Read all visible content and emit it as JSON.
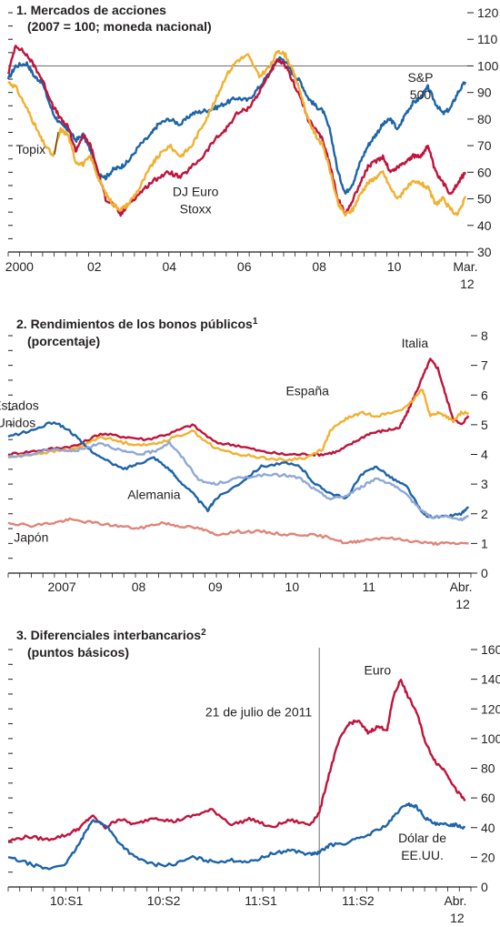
{
  "chart_data": [
    {
      "type": "line",
      "title": "1. Mercados de acciones",
      "subtitle": "(2007 = 100; moneda nacional)",
      "ylim": [
        30,
        120
      ],
      "yticks": [
        30,
        40,
        50,
        60,
        70,
        80,
        90,
        100,
        110,
        120
      ],
      "xlim": [
        2000.0,
        2012.25
      ],
      "xticks": [
        {
          "label": "2000",
          "x": 2000.3
        },
        {
          "label": "02",
          "x": 2002.3
        },
        {
          "label": "04",
          "x": 2004.3
        },
        {
          "label": "06",
          "x": 2006.3
        },
        {
          "label": "08",
          "x": 2008.3
        },
        {
          "label": "10",
          "x": 2010.3
        },
        {
          "label": "Mar.",
          "label2": "12",
          "x": 2012.2
        }
      ],
      "reference_line": 100,
      "series": [
        {
          "name": "S&P 500",
          "label_lines": [
            "S&P",
            "500"
          ],
          "label_at": [
            2011.0,
            94
          ],
          "color": "#1e64a8",
          "x": [
            2000.0,
            2000.2,
            2000.5,
            2000.7,
            2000.9,
            2001.2,
            2001.4,
            2001.6,
            2001.8,
            2002.0,
            2002.2,
            2002.4,
            2002.6,
            2002.8,
            2003.0,
            2003.2,
            2003.5,
            2003.8,
            2004.0,
            2004.3,
            2004.6,
            2004.9,
            2005.2,
            2005.5,
            2005.8,
            2006.1,
            2006.4,
            2006.7,
            2007.0,
            2007.2,
            2007.4,
            2007.6,
            2007.8,
            2008.0,
            2008.2,
            2008.4,
            2008.6,
            2008.8,
            2009.0,
            2009.2,
            2009.4,
            2009.6,
            2009.8,
            2010.0,
            2010.2,
            2010.4,
            2010.6,
            2010.8,
            2011.0,
            2011.2,
            2011.4,
            2011.6,
            2011.8,
            2012.0,
            2012.2
          ],
          "y": [
            95,
            100,
            101,
            96,
            94,
            82,
            78,
            76,
            72,
            74,
            68,
            60,
            58,
            61,
            62,
            64,
            70,
            74,
            78,
            80,
            78,
            82,
            83,
            84,
            86,
            88,
            87,
            92,
            98,
            103,
            102,
            97,
            94,
            88,
            85,
            83,
            75,
            60,
            52,
            56,
            64,
            70,
            74,
            78,
            80,
            76,
            82,
            86,
            88,
            92,
            86,
            82,
            84,
            90,
            94
          ]
        },
        {
          "name": "DJ Euro Stoxx",
          "label_lines": [
            "DJ Euro",
            "Stoxx"
          ],
          "label_at": [
            2005.0,
            51
          ],
          "color": "#c0143c",
          "x": [
            2000.0,
            2000.2,
            2000.5,
            2000.7,
            2000.9,
            2001.2,
            2001.4,
            2001.6,
            2001.8,
            2002.0,
            2002.2,
            2002.4,
            2002.6,
            2002.8,
            2003.0,
            2003.2,
            2003.5,
            2003.8,
            2004.0,
            2004.3,
            2004.6,
            2004.9,
            2005.2,
            2005.5,
            2005.8,
            2006.1,
            2006.4,
            2006.7,
            2007.0,
            2007.2,
            2007.4,
            2007.6,
            2007.8,
            2008.0,
            2008.2,
            2008.4,
            2008.6,
            2008.8,
            2009.0,
            2009.2,
            2009.4,
            2009.6,
            2009.8,
            2010.0,
            2010.2,
            2010.4,
            2010.6,
            2010.8,
            2011.0,
            2011.2,
            2011.4,
            2011.6,
            2011.8,
            2012.0,
            2012.2
          ],
          "y": [
            97,
            108,
            104,
            100,
            95,
            85,
            80,
            77,
            68,
            74,
            70,
            60,
            50,
            48,
            44,
            48,
            52,
            56,
            58,
            60,
            58,
            62,
            66,
            72,
            76,
            82,
            84,
            90,
            98,
            102,
            100,
            94,
            88,
            80,
            76,
            72,
            62,
            50,
            44,
            50,
            56,
            62,
            64,
            66,
            60,
            62,
            64,
            66,
            66,
            70,
            60,
            56,
            52,
            56,
            60
          ]
        },
        {
          "name": "Topix",
          "label_lines": [
            "Topix"
          ],
          "label_at": [
            2000.6,
            67
          ],
          "color": "#f2b030",
          "x": [
            2000.0,
            2000.2,
            2000.5,
            2000.7,
            2000.9,
            2001.2,
            2001.4,
            2001.6,
            2001.8,
            2002.0,
            2002.2,
            2002.4,
            2002.6,
            2002.8,
            2003.0,
            2003.2,
            2003.5,
            2003.8,
            2004.0,
            2004.3,
            2004.6,
            2004.9,
            2005.2,
            2005.5,
            2005.8,
            2006.1,
            2006.4,
            2006.7,
            2007.0,
            2007.2,
            2007.4,
            2007.6,
            2007.8,
            2008.0,
            2008.2,
            2008.4,
            2008.6,
            2008.8,
            2009.0,
            2009.2,
            2009.4,
            2009.6,
            2009.8,
            2010.0,
            2010.2,
            2010.4,
            2010.6,
            2010.8,
            2011.0,
            2011.2,
            2011.4,
            2011.6,
            2011.8,
            2012.0,
            2012.2
          ],
          "y": [
            94,
            92,
            84,
            78,
            72,
            66,
            76,
            74,
            64,
            63,
            66,
            58,
            52,
            48,
            46,
            48,
            54,
            62,
            66,
            70,
            66,
            70,
            78,
            86,
            96,
            102,
            104,
            96,
            100,
            106,
            104,
            98,
            90,
            80,
            74,
            70,
            60,
            48,
            44,
            46,
            52,
            56,
            58,
            60,
            54,
            50,
            54,
            56,
            56,
            54,
            48,
            50,
            46,
            44,
            51
          ]
        }
      ]
    },
    {
      "type": "line",
      "title": "2. Rendimientos de los bonos públicos",
      "title_sup": "1",
      "subtitle": "(porcentaje)",
      "ylim": [
        0,
        8
      ],
      "yticks": [
        0,
        1,
        2,
        3,
        4,
        5,
        6,
        7,
        8
      ],
      "xlim": [
        2006.3,
        2012.33
      ],
      "xticks": [
        {
          "label": "2007",
          "x": 2007.0
        },
        {
          "label": "08",
          "x": 2008.0
        },
        {
          "label": "09",
          "x": 2009.0
        },
        {
          "label": "10",
          "x": 2010.0
        },
        {
          "label": "11",
          "x": 2011.0
        },
        {
          "label": "Abr.",
          "label2": "12",
          "x": 2012.2
        }
      ],
      "series": [
        {
          "name": "Italia",
          "label_lines": [
            "Italia"
          ],
          "label_at": [
            2011.6,
            7.6
          ],
          "color": "#c0143c",
          "x": [
            2006.3,
            2006.6,
            2006.9,
            2007.2,
            2007.5,
            2007.8,
            2008.1,
            2008.4,
            2008.7,
            2009.0,
            2009.3,
            2009.6,
            2009.9,
            2010.2,
            2010.4,
            2010.6,
            2010.8,
            2011.0,
            2011.2,
            2011.4,
            2011.5,
            2011.6,
            2011.7,
            2011.8,
            2011.9,
            2012.0,
            2012.1,
            2012.2,
            2012.3
          ],
          "y": [
            4.0,
            4.1,
            4.2,
            4.3,
            4.7,
            4.6,
            4.5,
            4.7,
            5.0,
            4.4,
            4.3,
            4.1,
            4.0,
            4.0,
            4.0,
            4.1,
            4.4,
            4.7,
            4.8,
            4.9,
            5.4,
            6.0,
            6.6,
            7.2,
            6.9,
            6.0,
            5.2,
            5.0,
            5.3
          ]
        },
        {
          "name": "España",
          "label_lines": [
            "España"
          ],
          "label_at": [
            2010.2,
            6.0
          ],
          "color": "#f2b030",
          "x": [
            2006.3,
            2006.6,
            2006.9,
            2007.2,
            2007.5,
            2007.8,
            2008.1,
            2008.4,
            2008.7,
            2009.0,
            2009.3,
            2009.6,
            2009.9,
            2010.2,
            2010.4,
            2010.5,
            2010.7,
            2010.9,
            2011.1,
            2011.3,
            2011.5,
            2011.7,
            2011.8,
            2011.9,
            2012.0,
            2012.1,
            2012.2,
            2012.3
          ],
          "y": [
            3.9,
            4.0,
            4.1,
            4.2,
            4.6,
            4.4,
            4.3,
            4.5,
            4.8,
            4.2,
            4.0,
            3.9,
            3.8,
            3.9,
            4.2,
            4.8,
            5.2,
            5.4,
            5.3,
            5.4,
            5.6,
            6.2,
            5.3,
            5.4,
            5.3,
            5.1,
            5.4,
            5.4
          ]
        },
        {
          "name": "Estados Unidos",
          "label_lines": [
            "Estados",
            "Unidos"
          ],
          "label_at": [
            2006.4,
            5.5
          ],
          "color": "#1e64a8",
          "x": [
            2006.3,
            2006.6,
            2006.9,
            2007.1,
            2007.3,
            2007.5,
            2007.8,
            2008.0,
            2008.2,
            2008.4,
            2008.5,
            2008.7,
            2008.9,
            2009.0,
            2009.3,
            2009.6,
            2009.9,
            2010.1,
            2010.3,
            2010.5,
            2010.7,
            2010.9,
            2011.1,
            2011.3,
            2011.5,
            2011.7,
            2011.8,
            2012.0,
            2012.2,
            2012.3
          ],
          "y": [
            4.6,
            4.8,
            5.1,
            4.8,
            4.3,
            3.9,
            3.5,
            3.7,
            3.9,
            3.5,
            3.2,
            2.7,
            2.1,
            2.5,
            3.0,
            3.6,
            3.7,
            3.6,
            3.0,
            2.7,
            2.5,
            3.3,
            3.6,
            3.2,
            2.9,
            2.0,
            1.9,
            1.9,
            2.0,
            2.2
          ]
        },
        {
          "name": "Alemania",
          "label_lines": [
            "Alemania"
          ],
          "label_at": [
            2008.2,
            2.5
          ],
          "color": "#8fa8d6",
          "x": [
            2006.3,
            2006.6,
            2006.9,
            2007.1,
            2007.3,
            2007.5,
            2007.8,
            2008.0,
            2008.2,
            2008.4,
            2008.6,
            2008.8,
            2009.0,
            2009.3,
            2009.6,
            2009.9,
            2010.1,
            2010.3,
            2010.5,
            2010.7,
            2010.9,
            2011.1,
            2011.3,
            2011.5,
            2011.7,
            2011.8,
            2012.0,
            2012.2,
            2012.3
          ],
          "y": [
            3.9,
            4.0,
            4.2,
            4.1,
            4.2,
            4.4,
            4.1,
            4.0,
            4.1,
            4.4,
            3.8,
            3.1,
            3.0,
            3.2,
            3.3,
            3.3,
            3.2,
            2.8,
            2.5,
            2.6,
            2.9,
            3.2,
            3.0,
            2.6,
            2.1,
            1.9,
            1.9,
            1.8,
            1.9
          ]
        },
        {
          "name": "Japón",
          "label_lines": [
            "Japón"
          ],
          "label_at": [
            2006.6,
            1.05
          ],
          "color": "#e0857a",
          "x": [
            2006.3,
            2006.6,
            2006.9,
            2007.1,
            2007.4,
            2007.7,
            2008.0,
            2008.3,
            2008.5,
            2008.8,
            2009.0,
            2009.3,
            2009.6,
            2009.9,
            2010.2,
            2010.5,
            2010.7,
            2010.9,
            2011.2,
            2011.5,
            2011.8,
            2012.0,
            2012.3
          ],
          "y": [
            1.7,
            1.6,
            1.7,
            1.8,
            1.7,
            1.6,
            1.5,
            1.7,
            1.6,
            1.5,
            1.3,
            1.4,
            1.4,
            1.3,
            1.3,
            1.2,
            1.0,
            1.1,
            1.2,
            1.1,
            1.0,
            1.0,
            1.0
          ]
        }
      ]
    },
    {
      "type": "line",
      "title": "3. Diferenciales interbancarios",
      "title_sup": "2",
      "subtitle": "(puntos básicos)",
      "ylim": [
        0,
        160
      ],
      "yticks": [
        0,
        20,
        40,
        60,
        80,
        100,
        120,
        140,
        160
      ],
      "xlim": [
        2009.95,
        2012.33
      ],
      "xticks": [
        {
          "label": "10:S1",
          "x": 2010.25
        },
        {
          "label": "10:S2",
          "x": 2010.75
        },
        {
          "label": "11:S1",
          "x": 2011.25
        },
        {
          "label": "11:S2",
          "x": 2011.75
        },
        {
          "label": "Abr.",
          "label2": "12",
          "x": 2012.25
        }
      ],
      "event_line": {
        "label": "21 de julio de 2011",
        "x": 2011.55
      },
      "series": [
        {
          "name": "Euro",
          "label_lines": [
            "Euro"
          ],
          "label_at": [
            2011.85,
            143
          ],
          "color": "#c0143c",
          "x": [
            2009.95,
            2010.05,
            2010.15,
            2010.25,
            2010.32,
            2010.38,
            2010.45,
            2010.52,
            2010.6,
            2010.7,
            2010.8,
            2010.9,
            2011.0,
            2011.1,
            2011.2,
            2011.3,
            2011.4,
            2011.5,
            2011.55,
            2011.6,
            2011.65,
            2011.7,
            2011.75,
            2011.8,
            2011.85,
            2011.9,
            2011.93,
            2011.97,
            2012.0,
            2012.05,
            2012.1,
            2012.15,
            2012.2,
            2012.25,
            2012.3
          ],
          "y": [
            31,
            34,
            32,
            35,
            40,
            48,
            40,
            46,
            42,
            47,
            44,
            48,
            52,
            42,
            46,
            40,
            45,
            42,
            50,
            76,
            98,
            110,
            112,
            104,
            108,
            106,
            128,
            140,
            130,
            118,
            96,
            84,
            78,
            66,
            58
          ]
        },
        {
          "name": "Dólar de EE.UU.",
          "label_lines": [
            "Dólar de",
            "EE.UU."
          ],
          "label_at": [
            2012.08,
            30
          ],
          "color": "#1e64a8",
          "x": [
            2009.95,
            2010.05,
            2010.15,
            2010.25,
            2010.32,
            2010.38,
            2010.45,
            2010.52,
            2010.6,
            2010.7,
            2010.8,
            2010.9,
            2011.0,
            2011.1,
            2011.2,
            2011.3,
            2011.4,
            2011.5,
            2011.55,
            2011.6,
            2011.7,
            2011.8,
            2011.9,
            2011.95,
            2012.0,
            2012.05,
            2012.1,
            2012.15,
            2012.2,
            2012.25,
            2012.3
          ],
          "y": [
            20,
            16,
            12,
            16,
            30,
            45,
            42,
            30,
            20,
            15,
            15,
            20,
            17,
            18,
            17,
            22,
            25,
            22,
            23,
            28,
            30,
            35,
            42,
            50,
            56,
            54,
            46,
            42,
            42,
            42,
            40
          ]
        }
      ]
    }
  ]
}
